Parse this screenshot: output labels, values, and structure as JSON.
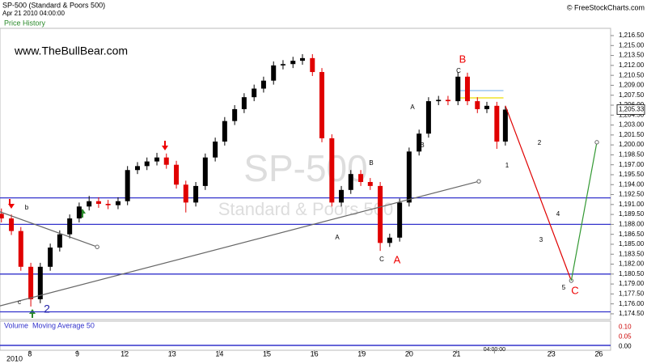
{
  "header": {
    "title": "SP-500 (Standard & Poors 500)",
    "timestamp": "Apr 21 2010 04:00:00",
    "copyright": "© FreeStockCharts.com",
    "panel": "Price History",
    "site": "www.TheBullBear.com",
    "watermark": "SP-500",
    "watermark_sub": "Standard & Poors 500"
  },
  "chart_data": {
    "type": "candlestick",
    "up_color": "#000000",
    "down_color": "#e00000",
    "x": [
      -0.6,
      -0.39,
      -0.19,
      0.02,
      0.22,
      0.43,
      0.63,
      0.84,
      1.04,
      1.25,
      1.45,
      1.65,
      1.86,
      2.06,
      2.27,
      2.47,
      2.68,
      2.88,
      3.09,
      3.29,
      3.5,
      3.7,
      3.91,
      4.11,
      4.32,
      4.52,
      4.73,
      4.93,
      5.14,
      5.34,
      5.55,
      5.75,
      5.96,
      6.16,
      6.37,
      6.57,
      6.77,
      6.98,
      7.18,
      7.39,
      7.59,
      7.8,
      8.0,
      8.21,
      8.41,
      8.62,
      8.82,
      9.03,
      9.23,
      9.44,
      9.64,
      9.85,
      10.03
    ],
    "ohlc": [
      [
        1189.6,
        1190.4,
        1188.3,
        1188.9
      ],
      [
        1188.9,
        1189.5,
        1186.4,
        1187.0
      ],
      [
        1187.0,
        1187.6,
        1181.0,
        1181.6
      ],
      [
        1181.6,
        1182.2,
        1175.6,
        1176.7
      ],
      [
        1176.7,
        1182.2,
        1176.1,
        1181.6
      ],
      [
        1181.6,
        1185.1,
        1181.0,
        1184.5
      ],
      [
        1184.5,
        1187.1,
        1183.9,
        1186.5
      ],
      [
        1186.5,
        1189.5,
        1185.9,
        1188.9
      ],
      [
        1188.9,
        1191.3,
        1188.3,
        1190.7
      ],
      [
        1190.7,
        1192.3,
        1190.1,
        1191.5
      ],
      [
        1191.5,
        1192.1,
        1190.5,
        1191.1
      ],
      [
        1191.1,
        1191.7,
        1190.3,
        1190.9
      ],
      [
        1190.9,
        1192.1,
        1190.3,
        1191.5
      ],
      [
        1191.5,
        1196.8,
        1190.9,
        1196.2
      ],
      [
        1196.2,
        1197.4,
        1195.6,
        1196.8
      ],
      [
        1196.8,
        1198.1,
        1196.2,
        1197.5
      ],
      [
        1197.5,
        1198.8,
        1196.9,
        1198.1
      ],
      [
        1198.1,
        1198.7,
        1196.4,
        1197.0
      ],
      [
        1197.0,
        1197.6,
        1193.4,
        1194.0
      ],
      [
        1194.0,
        1194.6,
        1189.8,
        1191.3
      ],
      [
        1191.3,
        1194.4,
        1190.7,
        1193.8
      ],
      [
        1193.8,
        1198.7,
        1193.2,
        1198.1
      ],
      [
        1198.1,
        1201.1,
        1197.5,
        1200.5
      ],
      [
        1200.5,
        1204.2,
        1199.9,
        1203.6
      ],
      [
        1203.6,
        1206.0,
        1203.0,
        1205.4
      ],
      [
        1205.4,
        1207.8,
        1204.8,
        1207.2
      ],
      [
        1207.2,
        1209.1,
        1206.6,
        1208.5
      ],
      [
        1208.5,
        1210.3,
        1207.9,
        1209.7
      ],
      [
        1209.7,
        1212.6,
        1209.1,
        1212.0
      ],
      [
        1212.0,
        1212.8,
        1211.4,
        1212.2
      ],
      [
        1212.2,
        1213.3,
        1211.6,
        1212.7
      ],
      [
        1212.7,
        1213.7,
        1212.1,
        1213.1
      ],
      [
        1213.1,
        1213.7,
        1210.4,
        1211.0
      ],
      [
        1211.0,
        1211.6,
        1200.4,
        1201.0
      ],
      [
        1201.0,
        1201.6,
        1190.7,
        1191.3
      ],
      [
        1191.3,
        1193.8,
        1190.7,
        1193.2
      ],
      [
        1193.2,
        1196.2,
        1192.6,
        1195.6
      ],
      [
        1195.6,
        1196.2,
        1193.8,
        1194.4
      ],
      [
        1194.4,
        1195.0,
        1193.2,
        1193.8
      ],
      [
        1193.8,
        1194.4,
        1184.0,
        1185.2
      ],
      [
        1185.2,
        1186.6,
        1184.6,
        1186.0
      ],
      [
        1186.0,
        1191.9,
        1185.4,
        1191.3
      ],
      [
        1191.3,
        1199.6,
        1190.7,
        1199.0
      ],
      [
        1199.0,
        1202.3,
        1198.4,
        1201.7
      ],
      [
        1201.7,
        1207.2,
        1201.1,
        1206.6
      ],
      [
        1206.6,
        1207.4,
        1206.0,
        1206.8
      ],
      [
        1206.8,
        1207.4,
        1206.0,
        1206.6
      ],
      [
        1206.6,
        1211.0,
        1206.0,
        1210.3
      ],
      [
        1210.3,
        1210.9,
        1206.0,
        1206.6
      ],
      [
        1206.6,
        1207.2,
        1204.8,
        1205.4
      ],
      [
        1205.4,
        1206.5,
        1204.8,
        1205.9
      ],
      [
        1205.9,
        1206.5,
        1199.4,
        1200.5
      ],
      [
        1200.5,
        1205.9,
        1199.9,
        1205.33
      ]
    ],
    "last_price": {
      "value": 1205.33,
      "label": "1,205.33"
    },
    "xlim": [
      -0.63,
      12.25
    ],
    "xticks": [
      {
        "value": 0,
        "label": "8"
      },
      {
        "value": 1,
        "label": "9"
      },
      {
        "value": 2,
        "label": "12"
      },
      {
        "value": 3,
        "label": "13"
      },
      {
        "value": 4,
        "label": "14"
      },
      {
        "value": 5,
        "label": "15"
      },
      {
        "value": 6,
        "label": "16"
      },
      {
        "value": 7,
        "label": "19"
      },
      {
        "value": 8,
        "label": "20"
      },
      {
        "value": 9,
        "label": "21"
      },
      {
        "value": 9.8,
        "label": "04:00:00"
      },
      {
        "value": 11,
        "label": "23"
      },
      {
        "value": 12,
        "label": "26"
      }
    ],
    "year_label": "2010",
    "ylim": [
      1173.64,
      1217.6
    ],
    "yticks": [
      {
        "value": 1174.5,
        "label": "1,174.50"
      },
      {
        "value": 1176,
        "label": "1,176.00"
      },
      {
        "value": 1177.5,
        "label": "1,177.50"
      },
      {
        "value": 1179,
        "label": "1,179.00"
      },
      {
        "value": 1180.5,
        "label": "1,180.50"
      },
      {
        "value": 1182,
        "label": "1,182.00"
      },
      {
        "value": 1183.5,
        "label": "1,183.50"
      },
      {
        "value": 1185,
        "label": "1,185.00"
      },
      {
        "value": 1186.5,
        "label": "1,186.50"
      },
      {
        "value": 1188,
        "label": "1,188.00"
      },
      {
        "value": 1189.5,
        "label": "1,189.50"
      },
      {
        "value": 1191,
        "label": "1,191.00"
      },
      {
        "value": 1192.5,
        "label": "1,192.50"
      },
      {
        "value": 1194,
        "label": "1,194.00"
      },
      {
        "value": 1195.5,
        "label": "1,195.50"
      },
      {
        "value": 1197,
        "label": "1,197.00"
      },
      {
        "value": 1198.5,
        "label": "1,198.50"
      },
      {
        "value": 1200,
        "label": "1,200.00"
      },
      {
        "value": 1201.5,
        "label": "1,201.50"
      },
      {
        "value": 1203,
        "label": "1,203.00"
      },
      {
        "value": 1204.5,
        "label": "1,204.50"
      },
      {
        "value": 1206,
        "label": "1,206.00"
      },
      {
        "value": 1207.5,
        "label": "1,207.50"
      },
      {
        "value": 1209,
        "label": "1,209.00"
      },
      {
        "value": 1210.5,
        "label": "1,210.50"
      },
      {
        "value": 1212,
        "label": "1,212.00"
      },
      {
        "value": 1213.5,
        "label": "1,213.50"
      },
      {
        "value": 1215,
        "label": "1,215.00"
      },
      {
        "value": 1216.5,
        "label": "1,216.50"
      }
    ],
    "levels": {
      "color": "#3333cc",
      "values": [
        1192.0,
        1188.0,
        1180.5,
        1174.8
      ]
    },
    "short_levels": [
      {
        "x": [
          9.0,
          9.99
        ],
        "value": 1208.2,
        "color": "#88bbee"
      },
      {
        "x": [
          9.0,
          9.99
        ],
        "value": 1207.1,
        "color": "#eedd00"
      }
    ],
    "trendlines": [
      {
        "color": "#666666",
        "x": [
          -0.63,
          9.47
        ],
        "y": [
          1175.7,
          1194.5
        ]
      },
      {
        "color": "#666666",
        "x": [
          -0.63,
          1.42
        ],
        "y": [
          1189.9,
          1184.6
        ]
      },
      {
        "color": "#e00000",
        "x": [
          10.03,
          11.42
        ],
        "y": [
          1205.9,
          1179.5
        ]
      },
      {
        "color": "#339933",
        "x": [
          11.42,
          11.96
        ],
        "y": [
          1179.5,
          1200.4
        ]
      }
    ],
    "annotations": [
      "B",
      "A",
      "C",
      "2",
      "b",
      "c",
      "A",
      "B",
      "C",
      "A",
      "B",
      "C",
      "1",
      "2",
      "3",
      "4",
      "5"
    ],
    "volume": {
      "legend": [
        "Volume",
        "Moving Average 50"
      ],
      "yticks": [
        {
          "value": 0.1,
          "label": "0.10"
        },
        {
          "value": 0.05,
          "label": "0.05"
        },
        {
          "value": 0,
          "label": "0.00"
        }
      ],
      "ylim": [
        -0.02,
        0.13
      ]
    }
  }
}
